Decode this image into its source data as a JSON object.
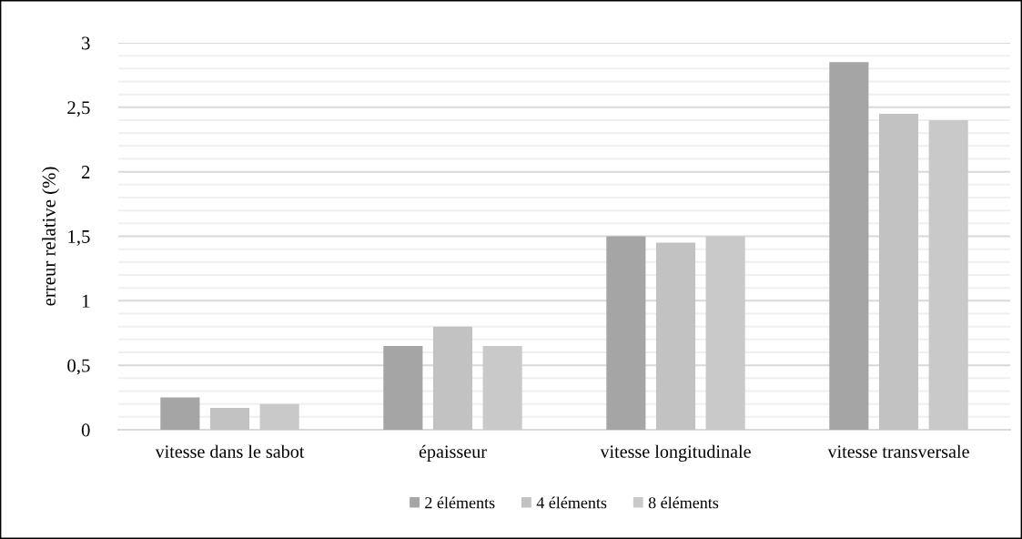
{
  "chart_data": {
    "type": "bar",
    "ylabel": "erreur relative (%)",
    "categories": [
      "vitesse dans le sabot",
      "épaisseur",
      "vitesse longitudinale",
      "vitesse transversale"
    ],
    "series": [
      {
        "name": "2 éléments",
        "color": "#a5a5a5",
        "values": [
          0.25,
          0.65,
          1.5,
          2.85
        ]
      },
      {
        "name": "4 éléments",
        "color": "#c2c2c2",
        "values": [
          0.17,
          0.8,
          1.45,
          2.45
        ]
      },
      {
        "name": "8 éléments",
        "color": "#c9c9c9",
        "values": [
          0.2,
          0.65,
          1.5,
          2.4
        ]
      }
    ],
    "ylim": [
      0,
      3
    ],
    "yticks": [
      0,
      {
        "value": 0.1,
        "label": null
      },
      {
        "value": 0.2,
        "label": null
      },
      {
        "value": 0.3,
        "label": null
      },
      {
        "value": 0.4,
        "label": null
      },
      {
        "value": 0.5,
        "label": "0,5"
      },
      {
        "value": 0.6,
        "label": null
      },
      {
        "value": 0.7,
        "label": null
      },
      {
        "value": 0.8,
        "label": null
      },
      {
        "value": 0.9,
        "label": null
      },
      1,
      {
        "value": 1.1,
        "label": null
      },
      {
        "value": 1.2,
        "label": null
      },
      {
        "value": 1.3,
        "label": null
      },
      {
        "value": 1.4,
        "label": null
      },
      {
        "value": 1.5,
        "label": "1,5"
      },
      {
        "value": 1.6,
        "label": null
      },
      {
        "value": 1.7,
        "label": null
      },
      {
        "value": 1.8,
        "label": null
      },
      {
        "value": 1.9,
        "label": null
      },
      2,
      {
        "value": 2.1,
        "label": null
      },
      {
        "value": 2.2,
        "label": null
      },
      {
        "value": 2.3,
        "label": null
      },
      {
        "value": 2.4,
        "label": null
      },
      {
        "value": 2.5,
        "label": "2,5"
      },
      {
        "value": 2.6,
        "label": null
      },
      {
        "value": 2.7,
        "label": null
      },
      {
        "value": 2.8,
        "label": null
      },
      {
        "value": 2.9,
        "label": null
      },
      3
    ],
    "grid": "y",
    "legend": "bottom"
  }
}
